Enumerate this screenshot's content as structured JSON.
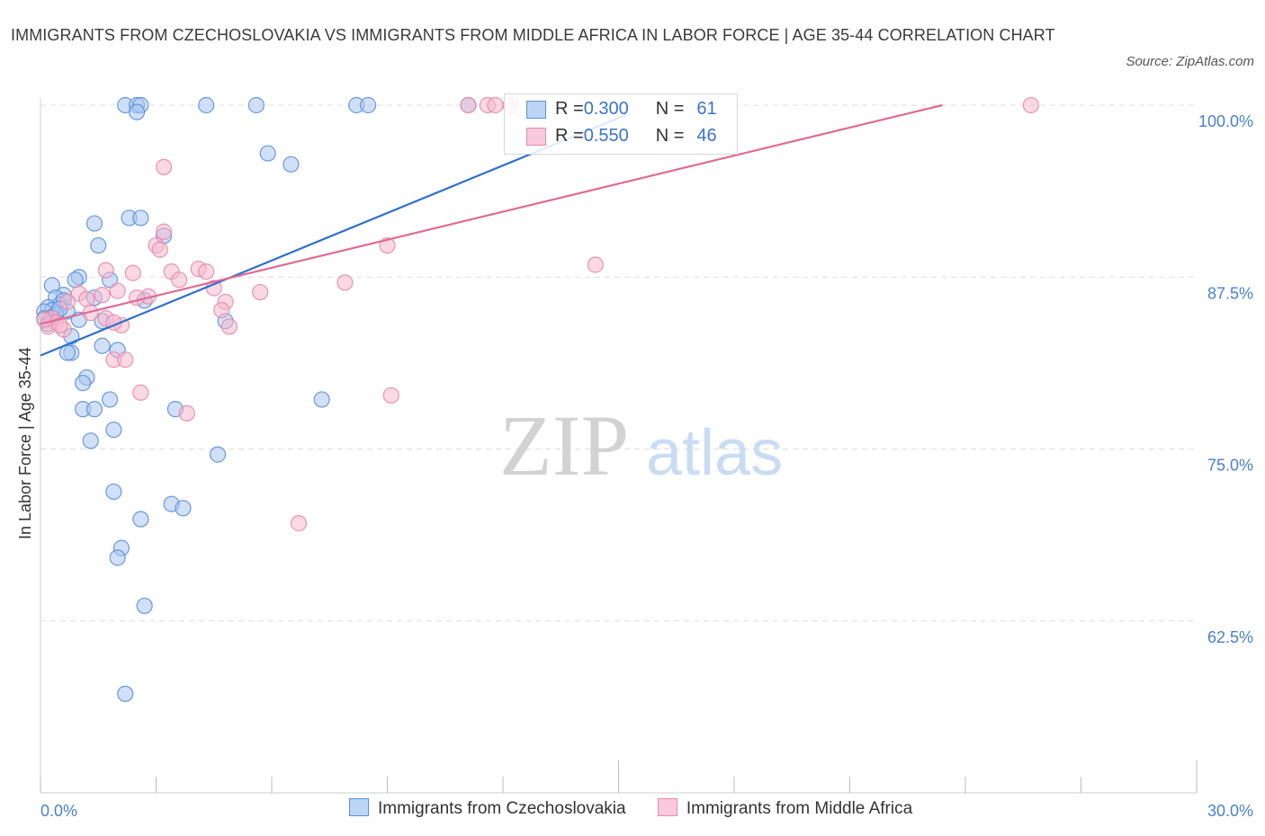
{
  "title": "IMMIGRANTS FROM CZECHOSLOVAKIA VS IMMIGRANTS FROM MIDDLE AFRICA IN LABOR FORCE | AGE 35-44 CORRELATION CHART",
  "source": "Source: ZipAtlas.com",
  "watermark": {
    "zip": "ZIP",
    "atlas": "atlas"
  },
  "legend": {
    "rows": [
      {
        "r_label": "R = ",
        "r_value": "0.300",
        "n_label": "N = ",
        "n_value": "61"
      },
      {
        "r_label": "R = ",
        "r_value": "0.550",
        "n_label": "N = ",
        "n_value": "46"
      }
    ]
  },
  "colors": {
    "blue_fill": "#a9c7f0",
    "blue_stroke": "#5b8fd9",
    "blue_line": "#2e6fd0",
    "pink_fill": "#f6b8cd",
    "pink_stroke": "#e88aaa",
    "pink_line": "#e06a94",
    "grid": "#dddddd",
    "axis_text": "#4a7fcf"
  },
  "chart_data": {
    "type": "scatter",
    "title": "IMMIGRANTS FROM CZECHOSLOVAKIA VS IMMIGRANTS FROM MIDDLE AFRICA IN LABOR FORCE | AGE 35-44 CORRELATION CHART",
    "xlabel": "",
    "ylabel": "In Labor Force | Age 35-44",
    "xlim": [
      0,
      30
    ],
    "ylim": [
      50,
      100
    ],
    "x_tick_labels": [
      "0.0%",
      "30.0%"
    ],
    "y_tick_labels": [
      "100.0%",
      "87.5%",
      "75.0%",
      "62.5%"
    ],
    "y_tick_values": [
      100,
      87.5,
      75,
      62.5
    ],
    "grid": true,
    "legend_position": "bottom",
    "series": [
      {
        "name": "Immigrants from Czechoslovakia",
        "color": "#5b8fd9",
        "trend": {
          "x": [
            0.0,
            15.2
          ],
          "y": [
            81.8,
            99.3
          ]
        },
        "points": [
          [
            2.2,
            100
          ],
          [
            2.5,
            100
          ],
          [
            2.6,
            100
          ],
          [
            4.3,
            100
          ],
          [
            5.6,
            100
          ],
          [
            8.2,
            100
          ],
          [
            8.5,
            100
          ],
          [
            11.1,
            100
          ],
          [
            2.5,
            99.5
          ],
          [
            5.9,
            96.5
          ],
          [
            6.5,
            95.7
          ],
          [
            1.4,
            91.4
          ],
          [
            2.3,
            91.8
          ],
          [
            2.6,
            91.8
          ],
          [
            1.5,
            89.8
          ],
          [
            3.2,
            90.5
          ],
          [
            1.0,
            87.5
          ],
          [
            0.9,
            87.3
          ],
          [
            1.8,
            87.3
          ],
          [
            0.3,
            86.9
          ],
          [
            0.6,
            86.2
          ],
          [
            0.4,
            86.0
          ],
          [
            0.5,
            85.5
          ],
          [
            0.6,
            85.8
          ],
          [
            0.2,
            85.3
          ],
          [
            0.3,
            85.1
          ],
          [
            0.7,
            85.0
          ],
          [
            0.1,
            85.0
          ],
          [
            0.3,
            84.6
          ],
          [
            0.1,
            84.5
          ],
          [
            1.0,
            84.4
          ],
          [
            1.6,
            84.3
          ],
          [
            0.2,
            84.1
          ],
          [
            1.4,
            86.0
          ],
          [
            2.7,
            85.8
          ],
          [
            4.8,
            84.3
          ],
          [
            0.8,
            83.2
          ],
          [
            1.6,
            82.5
          ],
          [
            0.8,
            82.0
          ],
          [
            0.7,
            82.0
          ],
          [
            2.0,
            82.2
          ],
          [
            1.2,
            80.2
          ],
          [
            1.1,
            79.8
          ],
          [
            1.8,
            78.6
          ],
          [
            7.3,
            78.6
          ],
          [
            1.1,
            77.9
          ],
          [
            1.4,
            77.9
          ],
          [
            3.5,
            77.9
          ],
          [
            1.9,
            76.4
          ],
          [
            1.3,
            75.6
          ],
          [
            4.6,
            74.6
          ],
          [
            1.9,
            71.9
          ],
          [
            3.4,
            71.0
          ],
          [
            3.7,
            70.7
          ],
          [
            2.6,
            69.9
          ],
          [
            2.1,
            67.8
          ],
          [
            2.0,
            67.1
          ],
          [
            2.7,
            63.6
          ],
          [
            2.2,
            57.2
          ],
          [
            0.4,
            84.8
          ],
          [
            0.5,
            85.2
          ]
        ]
      },
      {
        "name": "Immigrants from Middle Africa",
        "color": "#e88aaa",
        "trend": {
          "x": [
            0.0,
            23.4
          ],
          "y": [
            84.1,
            100.0
          ]
        },
        "points": [
          [
            11.1,
            100
          ],
          [
            11.6,
            100
          ],
          [
            11.8,
            100
          ],
          [
            12.2,
            100
          ],
          [
            25.7,
            100
          ],
          [
            3.2,
            95.5
          ],
          [
            3.2,
            90.8
          ],
          [
            3.0,
            89.8
          ],
          [
            3.1,
            89.5
          ],
          [
            9.0,
            89.8
          ],
          [
            14.4,
            88.4
          ],
          [
            1.7,
            88.0
          ],
          [
            2.4,
            87.8
          ],
          [
            3.4,
            87.9
          ],
          [
            4.1,
            88.1
          ],
          [
            4.3,
            87.9
          ],
          [
            3.6,
            87.3
          ],
          [
            7.9,
            87.1
          ],
          [
            4.5,
            86.7
          ],
          [
            2.0,
            86.5
          ],
          [
            5.7,
            86.4
          ],
          [
            1.0,
            86.3
          ],
          [
            1.6,
            86.2
          ],
          [
            2.8,
            86.1
          ],
          [
            2.5,
            86.0
          ],
          [
            0.7,
            85.7
          ],
          [
            1.2,
            85.9
          ],
          [
            4.8,
            85.7
          ],
          [
            4.7,
            85.1
          ],
          [
            1.3,
            84.9
          ],
          [
            0.3,
            84.5
          ],
          [
            1.7,
            84.5
          ],
          [
            0.4,
            84.2
          ],
          [
            2.1,
            84.0
          ],
          [
            4.9,
            83.9
          ],
          [
            0.2,
            83.9
          ],
          [
            0.6,
            83.7
          ],
          [
            1.9,
            81.5
          ],
          [
            2.2,
            81.5
          ],
          [
            2.6,
            79.1
          ],
          [
            9.1,
            78.9
          ],
          [
            3.8,
            77.6
          ],
          [
            6.7,
            69.6
          ],
          [
            0.1,
            84.4
          ],
          [
            0.5,
            84.0
          ],
          [
            1.9,
            84.2
          ]
        ]
      }
    ]
  },
  "bottom_legend": {
    "items": [
      {
        "label": "Immigrants from Czechoslovakia"
      },
      {
        "label": "Immigrants from Middle Africa"
      }
    ]
  }
}
